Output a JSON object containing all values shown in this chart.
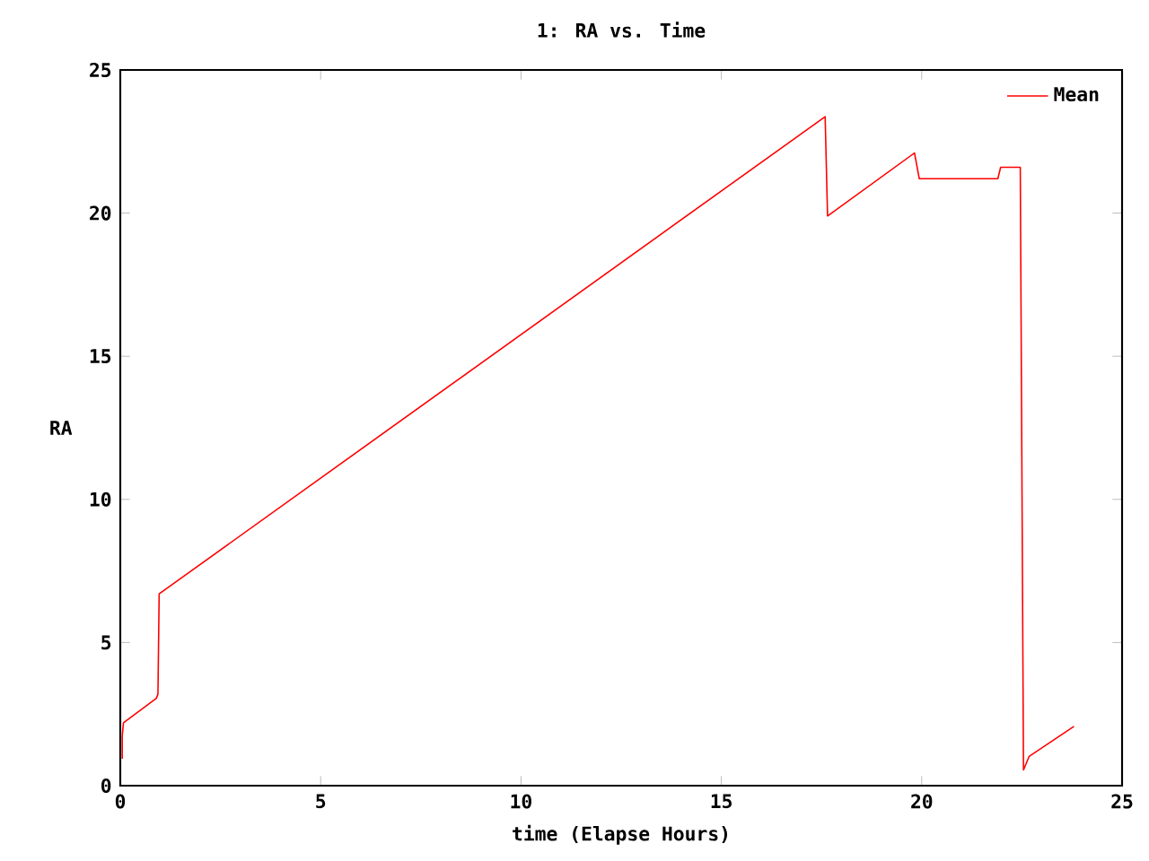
{
  "chart_data": {
    "type": "line",
    "title": "1: RA vs. Time",
    "xlabel": "time (Elapse Hours)",
    "ylabel": "RA",
    "xlim": [
      0,
      25
    ],
    "ylim": [
      0,
      25
    ],
    "xticks": [
      0,
      5,
      10,
      15,
      20,
      25
    ],
    "yticks": [
      0,
      5,
      10,
      15,
      20,
      25
    ],
    "legend": "top right",
    "grid": false,
    "marker": "none",
    "line_style": "solid",
    "series": [
      {
        "name": "Mean",
        "color": "#ff0000",
        "x": [
          0.05,
          0.05,
          0.08,
          0.9,
          0.94,
          0.97,
          17.59,
          17.65,
          19.82,
          19.94,
          21.9,
          21.97,
          22.46,
          22.54,
          22.68,
          23.8
        ],
        "values": [
          0.94,
          1.75,
          2.2,
          3.05,
          3.2,
          6.7,
          23.37,
          19.9,
          22.1,
          21.2,
          21.2,
          21.6,
          21.6,
          0.55,
          1.02,
          2.07
        ]
      }
    ]
  }
}
